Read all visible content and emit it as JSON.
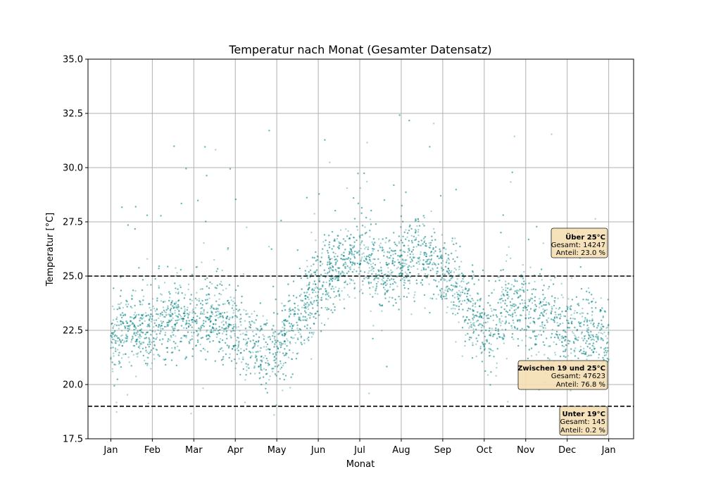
{
  "chart_data": {
    "type": "scatter",
    "title": "Temperatur nach Monat (Gesamter Datensatz)",
    "xlabel": "Monat",
    "ylabel": "Temperatur [°C]",
    "ylim": [
      17.5,
      35.0
    ],
    "xlim": [
      -0.55,
      12.6
    ],
    "y_ticks": [
      "17.5",
      "20.0",
      "22.5",
      "25.0",
      "27.5",
      "30.0",
      "32.5",
      "35.0"
    ],
    "x_ticks": [
      "Jan",
      "Feb",
      "Mar",
      "Apr",
      "May",
      "Jun",
      "Jul",
      "Aug",
      "Sep",
      "Oct",
      "Nov",
      "Dec",
      "Jan"
    ],
    "grid": true,
    "point_color": "#008080",
    "series": [
      {
        "values_by_month_center": [
          [
            0.0,
            22.2
          ],
          [
            0.5,
            22.6
          ],
          [
            1.0,
            22.6
          ],
          [
            1.5,
            22.9
          ],
          [
            2.0,
            23.0
          ],
          [
            2.5,
            23.1
          ],
          [
            3.0,
            22.5
          ],
          [
            3.5,
            21.6
          ],
          [
            4.0,
            21.4
          ],
          [
            4.5,
            23.2
          ],
          [
            5.0,
            24.4
          ],
          [
            5.5,
            25.3
          ],
          [
            6.0,
            26.2
          ],
          [
            6.5,
            25.0
          ],
          [
            7.0,
            25.5
          ],
          [
            7.5,
            26.2
          ],
          [
            8.0,
            25.2
          ],
          [
            8.5,
            23.8
          ],
          [
            9.0,
            22.4
          ],
          [
            9.5,
            23.6
          ],
          [
            10.0,
            23.3
          ],
          [
            10.5,
            22.9
          ],
          [
            11.0,
            22.4
          ],
          [
            11.5,
            22.3
          ],
          [
            12.0,
            22.2
          ]
        ]
      }
    ],
    "thresholds": [
      {
        "value": 25.0,
        "style": "dashed",
        "color": "#000000"
      },
      {
        "value": 19.0,
        "style": "dashed",
        "color": "#000000"
      }
    ],
    "annotations": [
      {
        "title": "Über 25°C",
        "line1": "Gesamt: 14247",
        "line2": "Anteil: 23.0 %",
        "position": "right, above 25°C line"
      },
      {
        "title": "Zwischen 19 und 25°C",
        "line1": "Gesamt: 47623",
        "line2": "Anteil: 76.8 %",
        "position": "right, above 19°C line"
      },
      {
        "title": "Unter 19°C",
        "line1": "Gesamt: 145",
        "line2": "Anteil: 0.2 %",
        "position": "bottom-right"
      }
    ],
    "annotation_box_color": "#f5deb3"
  }
}
